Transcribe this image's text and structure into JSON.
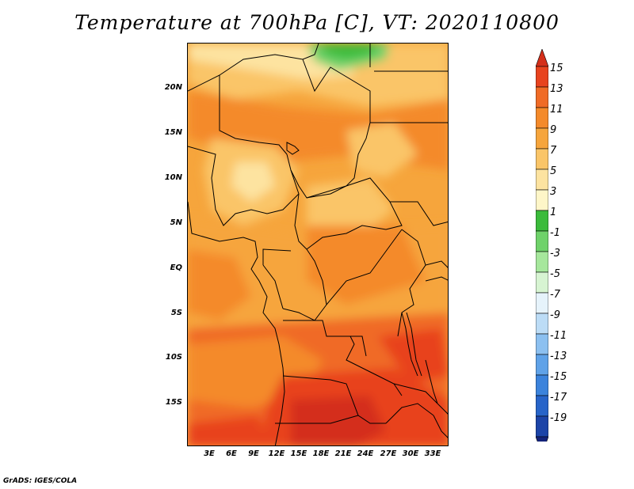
{
  "title": "Temperature at 700hPa [C], VT: 2020110800",
  "footer": "GrADS: IGES/COLA",
  "y_axis_labels": [
    "20N",
    "15N",
    "10N",
    "5N",
    "EQ",
    "5S",
    "10S",
    "15S"
  ],
  "x_axis_labels": [
    "3E",
    "6E",
    "9E",
    "12E",
    "15E",
    "18E",
    "21E",
    "24E",
    "27E",
    "30E",
    "33E"
  ],
  "colorbar": {
    "labels": [
      "15",
      "13",
      "11",
      "9",
      "7",
      "5",
      "3",
      "1",
      "-1",
      "-3",
      "-5",
      "-7",
      "-9",
      "-11",
      "-13",
      "-15",
      "-17",
      "-19"
    ],
    "colors": [
      "#d42f1a",
      "#e8431e",
      "#f06b26",
      "#f48a2a",
      "#f6a53c",
      "#fac568",
      "#fde3a0",
      "#fef6c8",
      "#3bbb3b",
      "#6fd26a",
      "#a6e79c",
      "#d7f4d2",
      "#e6f3fb",
      "#bcdcf6",
      "#8cc0f0",
      "#5fa2e8",
      "#3b83dc",
      "#2764c9",
      "#1c44a8",
      "#14237a"
    ]
  },
  "map": {
    "region": "Central Africa",
    "lat_range": [
      -21,
      24
    ],
    "lon_range": [
      0,
      35
    ],
    "warmest_area": "southern Angola / Zambia",
    "coolest_area": "northern Chad / Libya border"
  }
}
